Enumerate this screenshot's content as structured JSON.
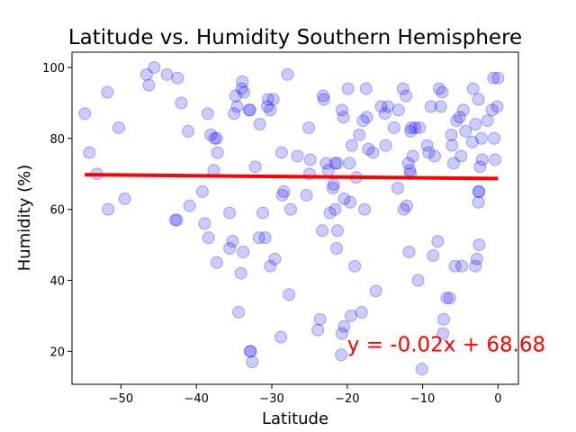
{
  "chart_data": {
    "type": "scatter",
    "title": "Latitude vs. Humidity Southern Hemisphere",
    "xlabel": "Latitude",
    "ylabel": "Humidity (%)",
    "xlim": [
      -56.5,
      2.7
    ],
    "ylim": [
      10.7,
      104.3
    ],
    "xticks": [
      -50,
      -40,
      -30,
      -20,
      -10,
      0
    ],
    "yticks": [
      20,
      40,
      60,
      80,
      100
    ],
    "grid": false,
    "legend": "none",
    "point_color": "#0000ff",
    "line_color": "#ff0000",
    "annotation": {
      "text": "y = -0.02x + 68.68",
      "color": "#ff0000",
      "x": -20,
      "y": 20
    },
    "regression": {
      "slope": -0.02,
      "intercept": 68.68,
      "x_range": [
        -54.8,
        0
      ]
    },
    "series": [
      {
        "points": [
          [
            -54.8,
            87
          ],
          [
            -54.2,
            76
          ],
          [
            -53.2,
            70
          ],
          [
            -51.8,
            93
          ],
          [
            -51.7,
            60
          ],
          [
            -50.3,
            83
          ],
          [
            -49.5,
            63
          ],
          [
            -46.6,
            98
          ],
          [
            -46.3,
            95
          ],
          [
            -45.6,
            100
          ],
          [
            -43.9,
            98
          ],
          [
            -42.8,
            57
          ],
          [
            -42.6,
            57
          ],
          [
            -42.5,
            97
          ],
          [
            -42.0,
            90
          ],
          [
            -41.1,
            82
          ],
          [
            -40.9,
            61
          ],
          [
            -39.2,
            65
          ],
          [
            -38.9,
            56
          ],
          [
            -38.5,
            87
          ],
          [
            -38.4,
            52
          ],
          [
            -38.1,
            81
          ],
          [
            -37.7,
            71
          ],
          [
            -37.6,
            80
          ],
          [
            -37.3,
            80
          ],
          [
            -37.2,
            76
          ],
          [
            -37.3,
            45
          ],
          [
            -35.6,
            59
          ],
          [
            -35.6,
            49
          ],
          [
            -35.2,
            51
          ],
          [
            -35.0,
            87
          ],
          [
            -34.8,
            92
          ],
          [
            -34.6,
            89
          ],
          [
            -34.4,
            31
          ],
          [
            -34.1,
            42
          ],
          [
            -34.0,
            94
          ],
          [
            -33.9,
            96
          ],
          [
            -33.8,
            48
          ],
          [
            -33.7,
            93
          ],
          [
            -33.0,
            88
          ],
          [
            -32.9,
            88
          ],
          [
            -32.9,
            20
          ],
          [
            -32.8,
            20
          ],
          [
            -32.6,
            17
          ],
          [
            -32.2,
            72
          ],
          [
            -31.6,
            84
          ],
          [
            -31.7,
            52
          ],
          [
            -31.2,
            59
          ],
          [
            -30.9,
            52
          ],
          [
            -30.6,
            89
          ],
          [
            -30.5,
            91
          ],
          [
            -30.2,
            44
          ],
          [
            -30.2,
            88
          ],
          [
            -29.8,
            91
          ],
          [
            -29.6,
            46
          ],
          [
            -28.8,
            24
          ],
          [
            -28.6,
            64
          ],
          [
            -28.7,
            76
          ],
          [
            -28.4,
            65
          ],
          [
            -27.9,
            98
          ],
          [
            -27.7,
            36
          ],
          [
            -27.5,
            60
          ],
          [
            -26.6,
            75
          ],
          [
            -25.4,
            64
          ],
          [
            -25.1,
            83
          ],
          [
            -25.0,
            70
          ],
          [
            -24.9,
            74
          ],
          [
            -23.9,
            26
          ],
          [
            -23.6,
            29
          ],
          [
            -23.3,
            54
          ],
          [
            -23.2,
            92
          ],
          [
            -23.1,
            91
          ],
          [
            -22.8,
            73
          ],
          [
            -22.5,
            71
          ],
          [
            -22.3,
            59
          ],
          [
            -21.9,
            66
          ],
          [
            -21.8,
            67
          ],
          [
            -21.6,
            60
          ],
          [
            -21.6,
            73
          ],
          [
            -21.4,
            49
          ],
          [
            -21.3,
            73
          ],
          [
            -21.3,
            54
          ],
          [
            -20.8,
            19
          ],
          [
            -20.7,
            25
          ],
          [
            -20.7,
            88
          ],
          [
            -20.5,
            86
          ],
          [
            -20.4,
            27
          ],
          [
            -20.4,
            63
          ],
          [
            -19.9,
            94
          ],
          [
            -19.7,
            73
          ],
          [
            -19.6,
            62
          ],
          [
            -19.5,
            30
          ],
          [
            -19.4,
            78
          ],
          [
            -19.0,
            44
          ],
          [
            -18.8,
            69
          ],
          [
            -18.4,
            81
          ],
          [
            -18.1,
            31
          ],
          [
            -17.9,
            85
          ],
          [
            -17.7,
            60
          ],
          [
            -17.5,
            94
          ],
          [
            -17.4,
            86
          ],
          [
            -17.2,
            77
          ],
          [
            -16.6,
            76
          ],
          [
            -16.2,
            37
          ],
          [
            -15.5,
            89
          ],
          [
            -15.0,
            87
          ],
          [
            -14.9,
            78
          ],
          [
            -14.6,
            89
          ],
          [
            -13.8,
            83
          ],
          [
            -13.3,
            66
          ],
          [
            -13.2,
            88
          ],
          [
            -12.6,
            94
          ],
          [
            -12.5,
            60
          ],
          [
            -12.2,
            92
          ],
          [
            -12.1,
            61
          ],
          [
            -11.9,
            73
          ],
          [
            -11.8,
            48
          ],
          [
            -11.7,
            71
          ],
          [
            -11.6,
            70
          ],
          [
            -11.6,
            82
          ],
          [
            -11.5,
            83
          ],
          [
            -11.3,
            75
          ],
          [
            -11.0,
            83
          ],
          [
            -10.6,
            40
          ],
          [
            -10.4,
            83
          ],
          [
            -10.1,
            15
          ],
          [
            -9.4,
            78
          ],
          [
            -9.2,
            76
          ],
          [
            -8.9,
            89
          ],
          [
            -8.6,
            47
          ],
          [
            -8.4,
            75
          ],
          [
            -8.0,
            51
          ],
          [
            -7.8,
            94
          ],
          [
            -7.6,
            89
          ],
          [
            -7.4,
            93
          ],
          [
            -7.3,
            25
          ],
          [
            -7.2,
            29
          ],
          [
            -6.8,
            35
          ],
          [
            -6.4,
            35
          ],
          [
            -6.2,
            81
          ],
          [
            -6.1,
            78
          ],
          [
            -5.9,
            73
          ],
          [
            -5.7,
            44
          ],
          [
            -5.5,
            85
          ],
          [
            -5.1,
            86
          ],
          [
            -4.9,
            75
          ],
          [
            -4.8,
            44
          ],
          [
            -4.6,
            88
          ],
          [
            -4.3,
            82
          ],
          [
            -3.4,
            79
          ],
          [
            -3.3,
            94
          ],
          [
            -3.0,
            84
          ],
          [
            -3.0,
            44
          ],
          [
            -2.8,
            46
          ],
          [
            -2.6,
            62
          ],
          [
            -2.6,
            65
          ],
          [
            -2.6,
            91
          ],
          [
            -2.5,
            65
          ],
          [
            -2.5,
            50
          ],
          [
            -2.4,
            72
          ],
          [
            -2.2,
            80
          ],
          [
            -2.1,
            74
          ],
          [
            -1.4,
            85
          ],
          [
            -0.8,
            88
          ],
          [
            -0.6,
            97
          ],
          [
            -0.5,
            80
          ],
          [
            -0.4,
            74
          ],
          [
            -0.1,
            89
          ],
          [
            0.0,
            97
          ]
        ]
      }
    ]
  }
}
